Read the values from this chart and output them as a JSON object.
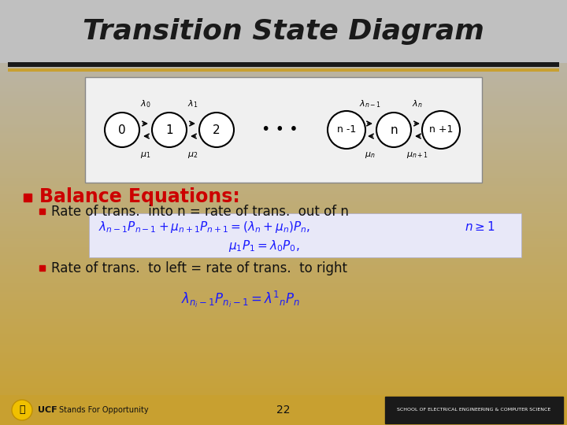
{
  "title": "Transition State Diagram",
  "title_fontsize": 28,
  "title_fontstyle": "italic",
  "title_fontweight": "bold",
  "bg_color_top": "#c8c8c8",
  "bg_color_bottom": "#c8a840",
  "slide_bg_top": "#b0b0b0",
  "slide_bg_bottom": "#c8a030",
  "header_bar_color1": "#1a1a1a",
  "header_bar_color2": "#c8a030",
  "diagram_bg": "#f5f5f5",
  "node_fill": "#ffffff",
  "node_edge": "#000000",
  "node_labels": [
    "0",
    "1",
    "2",
    "n -1",
    "n",
    "n +1"
  ],
  "lambda_labels": [
    "λ₀",
    "λ₁",
    "λ_{n-1}",
    "λ_n"
  ],
  "mu_labels": [
    "μ₁",
    "μ₂",
    "μ_n",
    "μ_{n+1}"
  ],
  "balance_title": "Balance Equations:",
  "balance_title_color": "#cc0000",
  "balance_title_fontsize": 18,
  "bullet_color": "#cc0000",
  "text_color": "#000000",
  "equation_color": "#1a1aff",
  "eq1_line1": "λ_{n-1} P_{n-1} + μ_{n+1} P_{n+1} = (λ_n + μ_n ) P_n,    n ≥ 1",
  "eq1_line2": "μ₁ P₁ = λ₀ P₀,",
  "eq2_line1": "λ_{n_i} ₁ P_{n_i} ₁ = λⁿ P_n",
  "sub_bullet1": "Rate of trans.  into n = rate of trans.  out of n",
  "sub_bullet2": "Rate of trans.  to left = rate of trans.  to right",
  "footer_text": "22",
  "footer_left": "UCF    Stands For Opportunity",
  "footer_right": "SCHOOL OF ELECTRICAL ENGINEERING & COMPUTER SCIENCE",
  "page_number": "22"
}
